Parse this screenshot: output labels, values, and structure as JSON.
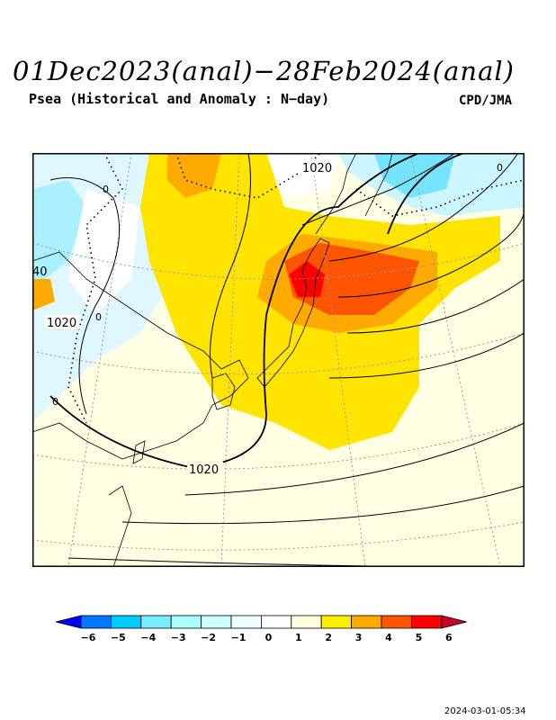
{
  "header": {
    "title": "01Dec2023(anal)−28Feb2024(anal)",
    "subtitle": "Psea (Historical and Anomaly : N−day)",
    "agency": "CPD/JMA"
  },
  "map": {
    "isobar_labels": [
      "1020",
      "1020",
      "1020",
      "0",
      "0",
      "0",
      "0",
      "40"
    ]
  },
  "colorbar": {
    "levels": [
      "−6",
      "−5",
      "−4",
      "−3",
      "−2",
      "−1",
      "0",
      "1",
      "2",
      "3",
      "4",
      "5",
      "6"
    ],
    "colors": [
      "#0000ff",
      "#0077ff",
      "#00ccff",
      "#77eeff",
      "#aaffff",
      "#ccffff",
      "#eeffff",
      "#ffffff",
      "#ffffdd",
      "#ffee00",
      "#ffaa00",
      "#ff5500",
      "#ff0000",
      "#cc0022"
    ]
  },
  "footer": {
    "timestamp": "2024-03-01-05:34"
  }
}
